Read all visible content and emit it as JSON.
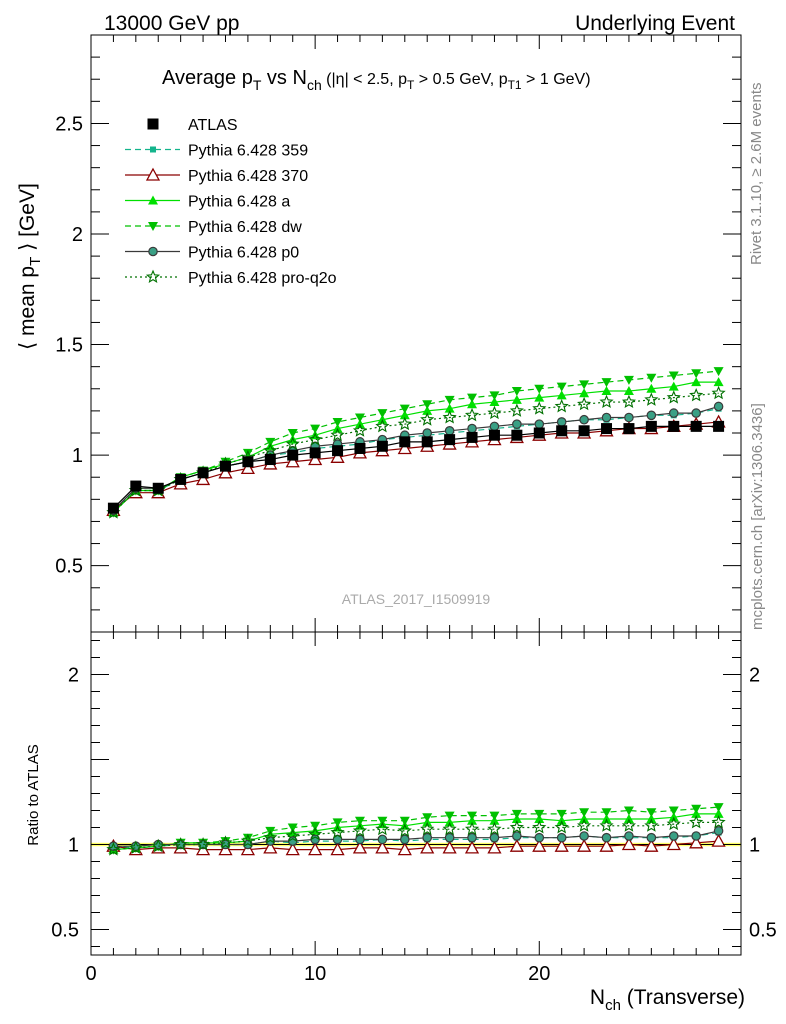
{
  "header": {
    "left": "13000 GeV pp",
    "right": "Underlying Event"
  },
  "side": {
    "rivet": "Rivet 3.1.10, ≥ 2.6M events",
    "mcplots": "mcplots.cern.ch [arXiv:1306.3436]"
  },
  "chart_data": [
    {
      "type": "line",
      "title": "Average p_T vs N_ch (|η| < 2.5, p_T > 0.5 GeV, p_T1 > 1 GeV)",
      "ylabel": "⟨ mean p_T ⟩ [GeV]",
      "watermark": "ATLAS_2017_I1509919",
      "xlim": [
        0,
        29
      ],
      "ylim": [
        0.2,
        2.9
      ],
      "yticks": [
        0.5,
        1,
        1.5,
        2,
        2.5
      ],
      "x": [
        1,
        2,
        3,
        4,
        5,
        6,
        7,
        8,
        9,
        10,
        11,
        12,
        13,
        14,
        15,
        16,
        17,
        18,
        19,
        20,
        21,
        22,
        23,
        24,
        25,
        26,
        27,
        28
      ],
      "legend_position": "top-left",
      "series": [
        {
          "name": "ATLAS",
          "color": "#000000",
          "marker": "square",
          "dash": "none",
          "values": [
            0.76,
            0.86,
            0.85,
            0.89,
            0.92,
            0.95,
            0.97,
            0.98,
            1.0,
            1.01,
            1.02,
            1.03,
            1.04,
            1.06,
            1.06,
            1.07,
            1.08,
            1.09,
            1.09,
            1.1,
            1.11,
            1.11,
            1.12,
            1.12,
            1.13,
            1.13,
            1.13,
            1.13
          ]
        },
        {
          "name": "Pythia 6.428 359",
          "color": "#14b48c",
          "marker": "smallsquare",
          "dash": "6,4",
          "values": [
            0.75,
            0.84,
            0.84,
            0.89,
            0.92,
            0.95,
            0.97,
            1.0,
            1.01,
            1.03,
            1.04,
            1.05,
            1.07,
            1.08,
            1.09,
            1.1,
            1.11,
            1.12,
            1.13,
            1.14,
            1.15,
            1.16,
            1.16,
            1.17,
            1.18,
            1.18,
            1.19,
            1.21
          ]
        },
        {
          "name": "Pythia 6.428 370",
          "color": "#8b0000",
          "marker": "triangle-open",
          "dash": "none",
          "values": [
            0.75,
            0.83,
            0.83,
            0.87,
            0.89,
            0.92,
            0.94,
            0.96,
            0.97,
            0.98,
            0.99,
            1.01,
            1.02,
            1.03,
            1.04,
            1.05,
            1.06,
            1.07,
            1.08,
            1.09,
            1.1,
            1.1,
            1.11,
            1.12,
            1.12,
            1.13,
            1.14,
            1.15
          ]
        },
        {
          "name": "Pythia 6.428 a",
          "color": "#00e000",
          "marker": "triangle",
          "dash": "none",
          "values": [
            0.74,
            0.84,
            0.84,
            0.9,
            0.93,
            0.96,
            0.99,
            1.04,
            1.07,
            1.09,
            1.12,
            1.14,
            1.16,
            1.18,
            1.2,
            1.21,
            1.23,
            1.24,
            1.25,
            1.26,
            1.27,
            1.28,
            1.29,
            1.29,
            1.3,
            1.31,
            1.33,
            1.33
          ]
        },
        {
          "name": "Pythia 6.428 dw",
          "color": "#00c000",
          "marker": "triangle-down",
          "dash": "6,4",
          "values": [
            0.74,
            0.84,
            0.84,
            0.9,
            0.93,
            0.97,
            1.01,
            1.06,
            1.1,
            1.12,
            1.15,
            1.17,
            1.19,
            1.21,
            1.23,
            1.25,
            1.26,
            1.27,
            1.29,
            1.3,
            1.31,
            1.32,
            1.33,
            1.34,
            1.35,
            1.36,
            1.37,
            1.38
          ]
        },
        {
          "name": "Pythia 6.428 p0",
          "color": "#3a3a3a",
          "marker": "circle-open",
          "dash": "none",
          "fill": "#3aa085",
          "values": [
            0.75,
            0.85,
            0.85,
            0.89,
            0.92,
            0.95,
            0.97,
            1.0,
            1.02,
            1.04,
            1.05,
            1.06,
            1.07,
            1.09,
            1.1,
            1.11,
            1.12,
            1.13,
            1.14,
            1.14,
            1.15,
            1.16,
            1.17,
            1.17,
            1.18,
            1.19,
            1.19,
            1.22
          ]
        },
        {
          "name": "Pythia 6.428 pro-q2o",
          "color": "#007000",
          "marker": "star",
          "dash": "2,3",
          "values": [
            0.74,
            0.84,
            0.84,
            0.89,
            0.92,
            0.96,
            0.99,
            1.02,
            1.05,
            1.07,
            1.09,
            1.11,
            1.13,
            1.14,
            1.16,
            1.17,
            1.18,
            1.19,
            1.2,
            1.21,
            1.22,
            1.23,
            1.24,
            1.24,
            1.25,
            1.26,
            1.27,
            1.28
          ]
        }
      ]
    },
    {
      "type": "line",
      "ylabel": "Ratio to ATLAS",
      "xlabel": "N_ch (Transverse)",
      "xlim": [
        0,
        29
      ],
      "ylim": [
        0.35,
        2.25
      ],
      "yticks": [
        0.5,
        1,
        2
      ],
      "xticks": [
        0,
        10,
        20
      ],
      "band_color": "#ffff66",
      "x": [
        1,
        2,
        3,
        4,
        5,
        6,
        7,
        8,
        9,
        10,
        11,
        12,
        13,
        14,
        15,
        16,
        17,
        18,
        19,
        20,
        21,
        22,
        23,
        24,
        25,
        26,
        27,
        28
      ],
      "series": [
        {
          "name": "Pythia 6.428 359",
          "color": "#14b48c",
          "marker": "smallsquare",
          "dash": "6,4",
          "values": [
            0.99,
            0.98,
            0.99,
            1.0,
            1.0,
            1.0,
            1.0,
            1.02,
            1.01,
            1.02,
            1.02,
            1.02,
            1.03,
            1.02,
            1.03,
            1.03,
            1.03,
            1.03,
            1.04,
            1.04,
            1.04,
            1.05,
            1.04,
            1.04,
            1.04,
            1.04,
            1.05,
            1.07
          ]
        },
        {
          "name": "Pythia 6.428 370",
          "color": "#8b0000",
          "marker": "triangle-open",
          "dash": "none",
          "values": [
            0.99,
            0.97,
            0.98,
            0.98,
            0.97,
            0.97,
            0.97,
            0.98,
            0.97,
            0.97,
            0.97,
            0.98,
            0.98,
            0.97,
            0.98,
            0.98,
            0.98,
            0.98,
            0.99,
            0.99,
            0.99,
            0.99,
            0.99,
            1.0,
            0.99,
            1.0,
            1.01,
            1.02
          ]
        },
        {
          "name": "Pythia 6.428 a",
          "color": "#00e000",
          "marker": "triangle",
          "dash": "none",
          "values": [
            0.97,
            0.98,
            0.99,
            1.01,
            1.01,
            1.01,
            1.02,
            1.06,
            1.07,
            1.08,
            1.1,
            1.11,
            1.12,
            1.11,
            1.13,
            1.13,
            1.14,
            1.14,
            1.15,
            1.15,
            1.14,
            1.15,
            1.15,
            1.15,
            1.15,
            1.16,
            1.18,
            1.18
          ]
        },
        {
          "name": "Pythia 6.428 dw",
          "color": "#00c000",
          "marker": "triangle-down",
          "dash": "6,4",
          "values": [
            0.97,
            0.98,
            0.99,
            1.01,
            1.01,
            1.02,
            1.04,
            1.08,
            1.1,
            1.11,
            1.13,
            1.14,
            1.14,
            1.14,
            1.16,
            1.17,
            1.17,
            1.17,
            1.18,
            1.18,
            1.18,
            1.19,
            1.19,
            1.2,
            1.19,
            1.2,
            1.21,
            1.22
          ]
        },
        {
          "name": "Pythia 6.428 p0",
          "color": "#3a3a3a",
          "marker": "circle-open",
          "dash": "none",
          "fill": "#3aa085",
          "values": [
            0.99,
            0.99,
            1.0,
            1.0,
            1.0,
            1.0,
            1.0,
            1.02,
            1.02,
            1.03,
            1.03,
            1.03,
            1.03,
            1.03,
            1.04,
            1.04,
            1.04,
            1.04,
            1.05,
            1.04,
            1.04,
            1.05,
            1.04,
            1.05,
            1.04,
            1.05,
            1.05,
            1.08
          ]
        },
        {
          "name": "Pythia 6.428 pro-q2o",
          "color": "#007000",
          "marker": "star",
          "dash": "2,3",
          "values": [
            0.97,
            0.98,
            0.99,
            1.0,
            1.0,
            1.01,
            1.02,
            1.04,
            1.05,
            1.06,
            1.07,
            1.08,
            1.09,
            1.08,
            1.09,
            1.09,
            1.09,
            1.09,
            1.1,
            1.1,
            1.1,
            1.11,
            1.11,
            1.11,
            1.11,
            1.12,
            1.13,
            1.13
          ]
        }
      ]
    }
  ]
}
